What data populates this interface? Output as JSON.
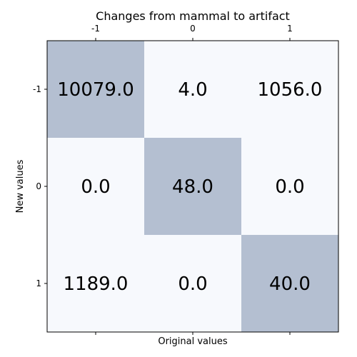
{
  "chart_data": {
    "type": "heatmap",
    "title": "Changes from mammal to artifact",
    "xlabel": "Original values",
    "ylabel": "New values",
    "x_categories": [
      "-1",
      "0",
      "1"
    ],
    "y_categories": [
      "-1",
      "0",
      "1"
    ],
    "x_tick_position": "top",
    "values": [
      [
        10079.0,
        4.0,
        1056.0
      ],
      [
        0.0,
        48.0,
        0.0
      ],
      [
        1189.0,
        0.0,
        40.0
      ]
    ],
    "cell_labels": [
      [
        "10079.0",
        "4.0",
        "1056.0"
      ],
      [
        "0.0",
        "48.0",
        "0.0"
      ],
      [
        "1189.0",
        "0.0",
        "40.0"
      ]
    ],
    "highlight": [
      [
        true,
        false,
        false
      ],
      [
        false,
        true,
        false
      ],
      [
        false,
        false,
        true
      ]
    ],
    "colors": {
      "highlight": "#b4bfd1",
      "background": "#f7f9fd",
      "frame": "#000000"
    },
    "grid": false
  }
}
